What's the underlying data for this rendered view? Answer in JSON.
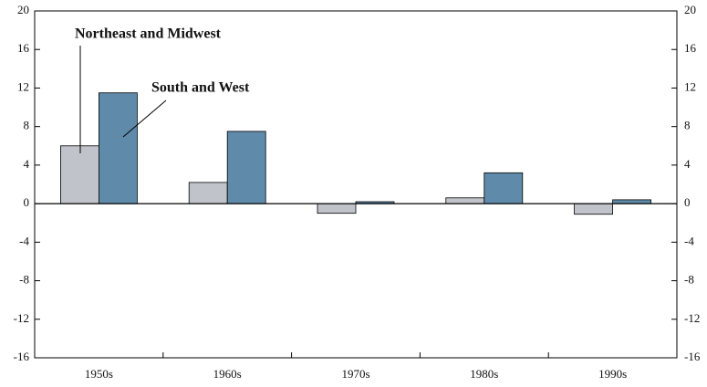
{
  "chart_data": {
    "type": "bar",
    "categories": [
      "1950s",
      "1960s",
      "1970s",
      "1980s",
      "1990s"
    ],
    "series": [
      {
        "name": "Northeast and Midwest",
        "color": "#c0c3c9",
        "values": [
          6.0,
          2.2,
          -1.0,
          0.6,
          -1.1
        ]
      },
      {
        "name": "South and West",
        "color": "#5f8aaa",
        "values": [
          11.5,
          7.5,
          0.2,
          3.2,
          0.4
        ]
      }
    ],
    "ylim": [
      -16,
      20
    ],
    "yticks": [
      -16,
      -12,
      -8,
      -4,
      0,
      4,
      8,
      12,
      16,
      20
    ],
    "y2lim": [
      -16,
      20
    ],
    "y2ticks": [
      -16,
      -12,
      -8,
      -4,
      0,
      4,
      8,
      12,
      16,
      20
    ]
  }
}
